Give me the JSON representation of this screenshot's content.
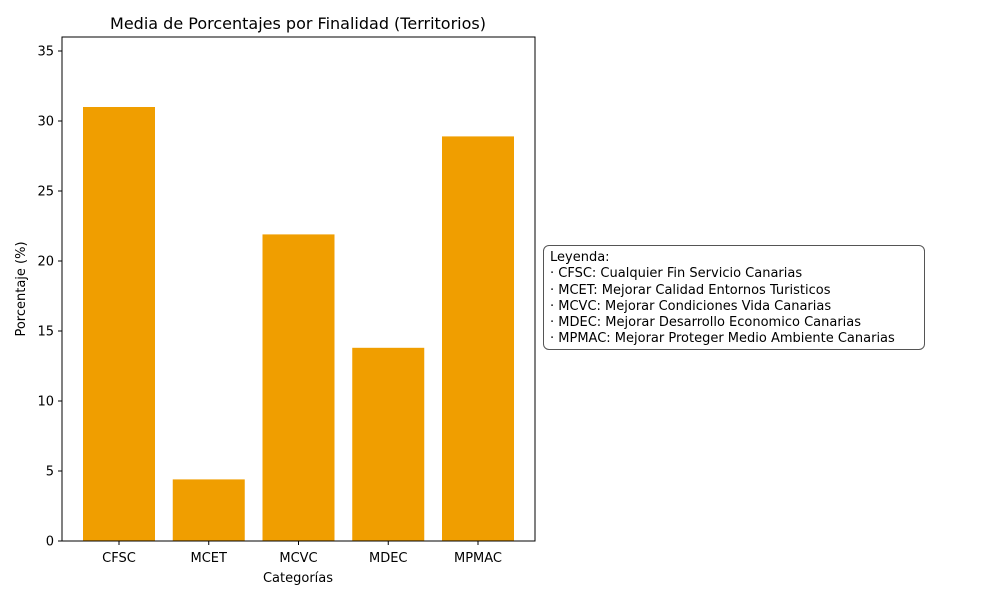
{
  "chart_data": {
    "type": "bar",
    "title": "Media de Porcentajes por Finalidad (Territorios)",
    "xlabel": "Categorías",
    "ylabel": "Porcentaje (%)",
    "categories": [
      "CFSC",
      "MCET",
      "MCVC",
      "MDEC",
      "MPMAC"
    ],
    "values": [
      31.0,
      4.4,
      21.9,
      13.8,
      28.9
    ],
    "ylim": [
      0,
      36
    ],
    "yticks": [
      0,
      5,
      10,
      15,
      20,
      25,
      30,
      35
    ],
    "bar_color": "#f09e00",
    "grid": false,
    "legend_placement": "right",
    "legend": {
      "title": "Leyenda:",
      "entries": [
        "· CFSC: Cualquier Fin Servicio Canarias",
        "· MCET: Mejorar Calidad Entornos Turisticos",
        "· MCVC: Mejorar Condiciones Vida Canarias",
        "· MDEC: Mejorar Desarrollo Economico Canarias",
        "· MPMAC: Mejorar Proteger Medio Ambiente Canarias"
      ]
    }
  }
}
